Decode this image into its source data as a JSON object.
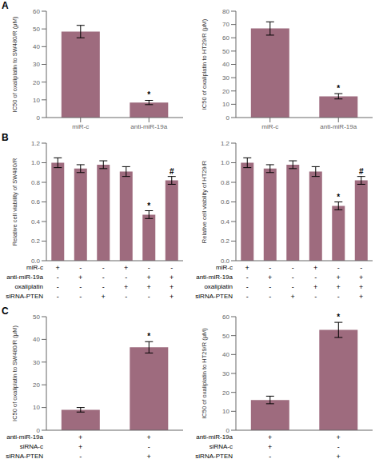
{
  "chart_data": [
    {
      "type": "bar",
      "title": "A",
      "categories": [
        "miR-c",
        "anti-miR-19a"
      ],
      "values": [
        48.5,
        8.5
      ],
      "errors": [
        3.5,
        1.2
      ],
      "color": "#9e6b7e",
      "y_label": "IC50 of oxaliplatin to SW480/R (μM)",
      "ylim": [
        0,
        60
      ],
      "yticks": [
        0,
        10,
        20,
        30,
        40,
        50,
        60
      ],
      "grid": false,
      "annotations": [
        {
          "index": 1,
          "text": "*"
        }
      ]
    },
    {
      "type": "bar",
      "categories": [
        "miR-c",
        "anti-miR-19a"
      ],
      "values": [
        67.0,
        16.0
      ],
      "errors": [
        5.0,
        2.0
      ],
      "color": "#9e6b7e",
      "y_label": "IC50 of oxaliplatin to HT29/R (μM)",
      "ylim": [
        0,
        80
      ],
      "yticks": [
        0,
        10,
        20,
        30,
        40,
        50,
        60,
        70,
        80
      ],
      "grid": false,
      "annotations": [
        {
          "index": 1,
          "text": "*"
        }
      ]
    },
    {
      "type": "bar",
      "title": "B",
      "categories": [
        null,
        null,
        null,
        null,
        null,
        null
      ],
      "tick_labels": "y",
      "values": [
        1.0,
        0.94,
        0.98,
        0.91,
        0.47,
        0.82
      ],
      "errors": [
        0.05,
        0.04,
        0.04,
        0.05,
        0.04,
        0.04
      ],
      "color": "#9e6b7e",
      "y_label": "Relative cell viability of SW480/R",
      "ylim": [
        0,
        1.2
      ],
      "yticks": [
        {
          "value": 0,
          "label": "0.0"
        },
        0.2,
        0.4,
        0.6,
        0.8,
        {
          "value": 1,
          "label": "1.0"
        },
        1.2
      ],
      "grid": false,
      "annotations": [
        {
          "index": 4,
          "text": "*"
        },
        {
          "index": 5,
          "text": "#"
        }
      ],
      "table": {
        "row_labels": [
          "miR-c",
          "anti-miR-19a",
          "oxaliplatin",
          "siRNA-PTEN"
        ],
        "cells": [
          [
            "+",
            "-",
            "-",
            "+",
            "-",
            "-"
          ],
          [
            "-",
            "+",
            "-",
            "-",
            "+",
            "+"
          ],
          [
            "-",
            "-",
            "-",
            "+",
            "+",
            "+"
          ],
          [
            "-",
            "-",
            "+",
            "-",
            "-",
            "+"
          ]
        ]
      }
    },
    {
      "type": "bar",
      "categories": [
        null,
        null,
        null,
        null,
        null,
        null
      ],
      "tick_labels": "y",
      "values": [
        1.0,
        0.94,
        0.98,
        0.91,
        0.56,
        0.82
      ],
      "errors": [
        0.05,
        0.04,
        0.04,
        0.05,
        0.04,
        0.04
      ],
      "color": "#9e6b7e",
      "y_label": "Relative cell viability of HT29/R",
      "ylim": [
        0,
        1.2
      ],
      "yticks": [
        {
          "value": 0,
          "label": "0.0"
        },
        0.2,
        0.4,
        0.6,
        0.8,
        {
          "value": 1,
          "label": "1.0"
        },
        1.2
      ],
      "grid": false,
      "annotations": [
        {
          "index": 4,
          "text": "*"
        },
        {
          "index": 5,
          "text": "#"
        }
      ],
      "table": {
        "row_labels": [
          "miR-c",
          "anti-miR-19a",
          "oxaliplatin",
          "siRNA-PTEN"
        ],
        "cells": [
          [
            "+",
            "-",
            "-",
            "+",
            "-",
            "-"
          ],
          [
            "-",
            "+",
            "-",
            "-",
            "+",
            "+"
          ],
          [
            "-",
            "-",
            "-",
            "+",
            "+",
            "+"
          ],
          [
            "-",
            "-",
            "+",
            "-",
            "-",
            "+"
          ]
        ]
      }
    },
    {
      "type": "bar",
      "title": "C",
      "categories": [
        null,
        null
      ],
      "tick_labels": "y",
      "values": [
        9.0,
        36.5
      ],
      "errors": [
        1.0,
        2.5
      ],
      "color": "#9e6b7e",
      "y_label": "IC50 of oxaliplatin to SW480/R (μM)",
      "ylim": [
        0,
        50
      ],
      "yticks": [
        0,
        10,
        20,
        30,
        40,
        50
      ],
      "grid": false,
      "annotations": [
        {
          "index": 1,
          "text": "*"
        }
      ],
      "table": {
        "row_labels": [
          "anti-miR-19a",
          "siRNA-c",
          "siRNA-PTEN"
        ],
        "cells": [
          [
            "+",
            "+"
          ],
          [
            "+",
            "-"
          ],
          [
            "-",
            "+"
          ]
        ]
      }
    },
    {
      "type": "bar",
      "categories": [
        null,
        null
      ],
      "tick_labels": "y",
      "values": [
        16.0,
        53.0
      ],
      "errors": [
        2.0,
        4.0
      ],
      "color": "#9e6b7e",
      "y_label": "IC50 of oxaliplatin to HT29/R (μM)",
      "ylim": [
        0,
        60
      ],
      "yticks": [
        0,
        10,
        20,
        30,
        40,
        50,
        60
      ],
      "grid": false,
      "annotations": [
        {
          "index": 1,
          "text": "*"
        }
      ],
      "table": {
        "row_labels": [
          "anti-miR-19a",
          "siRNA-c",
          "siRNA-PTEN"
        ],
        "cells": [
          [
            "+",
            "+"
          ],
          [
            "+",
            "-"
          ],
          [
            "-",
            "+"
          ]
        ]
      }
    }
  ]
}
